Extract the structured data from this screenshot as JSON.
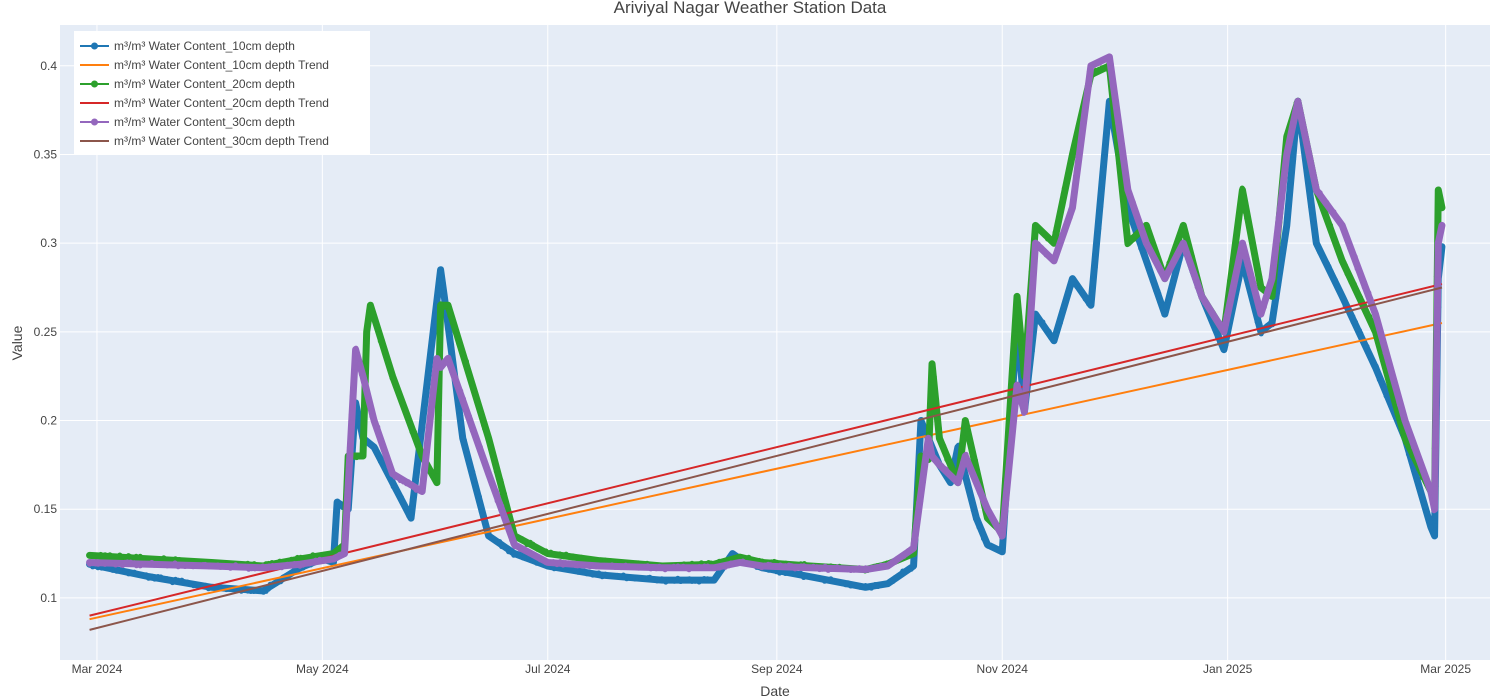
{
  "chart_data": {
    "type": "line",
    "title": "Ariviyal Nagar Weather Station Data",
    "xlabel": "Date",
    "ylabel": "Value",
    "x_range": [
      "2024-02-20",
      "2025-03-13"
    ],
    "ylim": [
      0.065,
      0.423
    ],
    "x_ticks": [
      {
        "date": "2024-03-01",
        "label": "Mar 2024"
      },
      {
        "date": "2024-05-01",
        "label": "May 2024"
      },
      {
        "date": "2024-07-01",
        "label": "Jul 2024"
      },
      {
        "date": "2024-09-01",
        "label": "Sep 2024"
      },
      {
        "date": "2024-11-01",
        "label": "Nov 2024"
      },
      {
        "date": "2025-01-01",
        "label": "Jan 2025"
      },
      {
        "date": "2025-03-01",
        "label": "Mar 2025"
      }
    ],
    "y_ticks": [
      0.1,
      0.15,
      0.2,
      0.25,
      0.3,
      0.35,
      0.4
    ],
    "grid": true,
    "legend_position": "top-left",
    "series": [
      {
        "name": "m³/m³ Water Content_10cm depth",
        "kind": "data",
        "color": "#1f77b4",
        "x": [
          "2024-02-28",
          "2024-03-15",
          "2024-04-01",
          "2024-04-15",
          "2024-04-25",
          "2024-05-01",
          "2024-05-04",
          "2024-05-05",
          "2024-05-08",
          "2024-05-10",
          "2024-05-12",
          "2024-05-15",
          "2024-05-20",
          "2024-05-25",
          "2024-06-02",
          "2024-06-03",
          "2024-06-08",
          "2024-06-15",
          "2024-06-22",
          "2024-07-01",
          "2024-07-15",
          "2024-08-01",
          "2024-08-15",
          "2024-08-20",
          "2024-08-22",
          "2024-08-28",
          "2024-09-10",
          "2024-09-25",
          "2024-10-01",
          "2024-10-08",
          "2024-10-10",
          "2024-10-15",
          "2024-10-18",
          "2024-10-20",
          "2024-10-25",
          "2024-10-28",
          "2024-11-01",
          "2024-11-05",
          "2024-11-07",
          "2024-11-10",
          "2024-11-15",
          "2024-11-20",
          "2024-11-25",
          "2024-11-30",
          "2024-12-05",
          "2024-12-10",
          "2024-12-15",
          "2024-12-20",
          "2024-12-25",
          "2024-12-31",
          "2025-01-05",
          "2025-01-10",
          "2025-01-13",
          "2025-01-17",
          "2025-01-20",
          "2025-01-25",
          "2025-02-01",
          "2025-02-10",
          "2025-02-18",
          "2025-02-25",
          "2025-02-26",
          "2025-02-27",
          "2025-02-28"
        ],
        "y": [
          0.119,
          0.112,
          0.106,
          0.104,
          0.117,
          0.122,
          0.12,
          0.154,
          0.15,
          0.21,
          0.19,
          0.185,
          0.165,
          0.145,
          0.285,
          0.27,
          0.19,
          0.135,
          0.125,
          0.118,
          0.113,
          0.11,
          0.11,
          0.125,
          0.122,
          0.117,
          0.112,
          0.106,
          0.108,
          0.118,
          0.2,
          0.175,
          0.165,
          0.185,
          0.145,
          0.13,
          0.126,
          0.255,
          0.205,
          0.26,
          0.245,
          0.28,
          0.265,
          0.38,
          0.32,
          0.29,
          0.26,
          0.3,
          0.27,
          0.24,
          0.29,
          0.25,
          0.255,
          0.31,
          0.38,
          0.3,
          0.27,
          0.23,
          0.19,
          0.14,
          0.135,
          0.28,
          0.298
        ]
      },
      {
        "name": "m³/m³ Water Content_10cm depth Trend",
        "kind": "trend",
        "color": "#ff7f0e",
        "x": [
          "2024-02-28",
          "2025-02-28"
        ],
        "y": [
          0.088,
          0.255
        ]
      },
      {
        "name": "m³/m³ Water Content_20cm depth",
        "kind": "data",
        "color": "#2ca02c",
        "x": [
          "2024-02-28",
          "2024-03-15",
          "2024-04-01",
          "2024-04-15",
          "2024-04-25",
          "2024-05-01",
          "2024-05-04",
          "2024-05-07",
          "2024-05-08",
          "2024-05-12",
          "2024-05-13",
          "2024-05-14",
          "2024-05-20",
          "2024-05-28",
          "2024-06-01",
          "2024-06-02",
          "2024-06-04",
          "2024-06-15",
          "2024-06-22",
          "2024-07-01",
          "2024-07-15",
          "2024-08-01",
          "2024-08-15",
          "2024-08-22",
          "2024-08-28",
          "2024-09-10",
          "2024-09-25",
          "2024-10-01",
          "2024-10-08",
          "2024-10-10",
          "2024-10-12",
          "2024-10-13",
          "2024-10-15",
          "2024-10-20",
          "2024-10-22",
          "2024-10-28",
          "2024-11-01",
          "2024-11-05",
          "2024-11-07",
          "2024-11-10",
          "2024-11-15",
          "2024-11-20",
          "2024-11-25",
          "2024-11-30",
          "2024-12-05",
          "2024-12-10",
          "2024-12-15",
          "2024-12-20",
          "2024-12-25",
          "2024-12-31",
          "2025-01-05",
          "2025-01-10",
          "2025-01-13",
          "2025-01-17",
          "2025-01-20",
          "2025-01-25",
          "2025-02-01",
          "2025-02-10",
          "2025-02-18",
          "2025-02-25",
          "2025-02-26",
          "2025-02-27",
          "2025-02-28"
        ],
        "y": [
          0.124,
          0.122,
          0.12,
          0.118,
          0.122,
          0.124,
          0.125,
          0.13,
          0.18,
          0.18,
          0.25,
          0.265,
          0.225,
          0.18,
          0.165,
          0.265,
          0.265,
          0.19,
          0.135,
          0.125,
          0.121,
          0.118,
          0.119,
          0.123,
          0.12,
          0.118,
          0.116,
          0.119,
          0.125,
          0.18,
          0.178,
          0.232,
          0.19,
          0.165,
          0.2,
          0.145,
          0.137,
          0.27,
          0.225,
          0.31,
          0.3,
          0.35,
          0.395,
          0.4,
          0.3,
          0.31,
          0.28,
          0.31,
          0.27,
          0.25,
          0.33,
          0.275,
          0.27,
          0.36,
          0.38,
          0.33,
          0.29,
          0.25,
          0.19,
          0.16,
          0.155,
          0.33,
          0.32
        ]
      },
      {
        "name": "m³/m³ Water Content_20cm depth Trend",
        "kind": "trend",
        "color": "#d62728",
        "x": [
          "2024-02-28",
          "2025-02-28"
        ],
        "y": [
          0.09,
          0.277
        ]
      },
      {
        "name": "m³/m³ Water Content_30cm depth",
        "kind": "data",
        "color": "#9467bd",
        "x": [
          "2024-02-28",
          "2024-03-15",
          "2024-04-01",
          "2024-04-15",
          "2024-04-25",
          "2024-05-01",
          "2024-05-04",
          "2024-05-07",
          "2024-05-10",
          "2024-05-12",
          "2024-05-15",
          "2024-05-20",
          "2024-05-28",
          "2024-06-01",
          "2024-06-02",
          "2024-06-04",
          "2024-06-15",
          "2024-06-22",
          "2024-07-01",
          "2024-07-15",
          "2024-08-01",
          "2024-08-15",
          "2024-08-22",
          "2024-08-28",
          "2024-09-10",
          "2024-09-25",
          "2024-10-01",
          "2024-10-08",
          "2024-10-12",
          "2024-10-13",
          "2024-10-15",
          "2024-10-20",
          "2024-10-22",
          "2024-10-28",
          "2024-11-01",
          "2024-11-05",
          "2024-11-07",
          "2024-11-10",
          "2024-11-15",
          "2024-11-20",
          "2024-11-25",
          "2024-11-30",
          "2024-12-05",
          "2024-12-10",
          "2024-12-15",
          "2024-12-20",
          "2024-12-25",
          "2024-12-31",
          "2025-01-05",
          "2025-01-10",
          "2025-01-13",
          "2025-01-17",
          "2025-01-20",
          "2025-01-25",
          "2025-02-01",
          "2025-02-10",
          "2025-02-18",
          "2025-02-25",
          "2025-02-26",
          "2025-02-27",
          "2025-02-28"
        ],
        "y": [
          0.12,
          0.119,
          0.118,
          0.117,
          0.119,
          0.121,
          0.122,
          0.125,
          0.24,
          0.225,
          0.2,
          0.17,
          0.16,
          0.235,
          0.23,
          0.235,
          0.17,
          0.13,
          0.12,
          0.118,
          0.117,
          0.117,
          0.12,
          0.118,
          0.117,
          0.116,
          0.118,
          0.128,
          0.19,
          0.18,
          0.175,
          0.165,
          0.18,
          0.15,
          0.135,
          0.22,
          0.205,
          0.3,
          0.29,
          0.32,
          0.4,
          0.405,
          0.33,
          0.3,
          0.28,
          0.3,
          0.27,
          0.25,
          0.3,
          0.26,
          0.28,
          0.35,
          0.38,
          0.33,
          0.31,
          0.26,
          0.2,
          0.16,
          0.15,
          0.3,
          0.31
        ]
      },
      {
        "name": "m³/m³ Water Content_30cm depth Trend",
        "kind": "trend",
        "color": "#8c564b",
        "x": [
          "2024-02-28",
          "2025-02-28"
        ],
        "y": [
          0.082,
          0.275
        ]
      }
    ]
  }
}
